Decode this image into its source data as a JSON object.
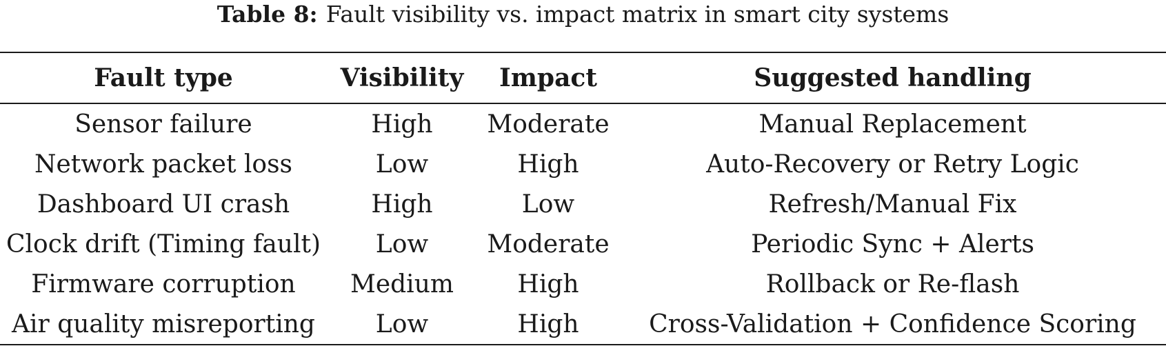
{
  "caption": {
    "label": "Table 8:",
    "text": "Fault visibility vs. impact matrix in smart city systems"
  },
  "table": {
    "headers": [
      "Fault type",
      "Visibility",
      "Impact",
      "Suggested handling"
    ],
    "rows": [
      [
        "Sensor failure",
        "High",
        "Moderate",
        "Manual Replacement"
      ],
      [
        "Network packet loss",
        "Low",
        "High",
        "Auto-Recovery or Retry Logic"
      ],
      [
        "Dashboard UI crash",
        "High",
        "Low",
        "Refresh/Manual Fix"
      ],
      [
        "Clock drift (Timing fault)",
        "Low",
        "Moderate",
        "Periodic Sync + Alerts"
      ],
      [
        "Firmware corruption",
        "Medium",
        "High",
        "Rollback or Re-flash"
      ],
      [
        "Air quality misreporting",
        "Low",
        "High",
        "Cross-Validation + Confidence Scoring"
      ]
    ]
  }
}
